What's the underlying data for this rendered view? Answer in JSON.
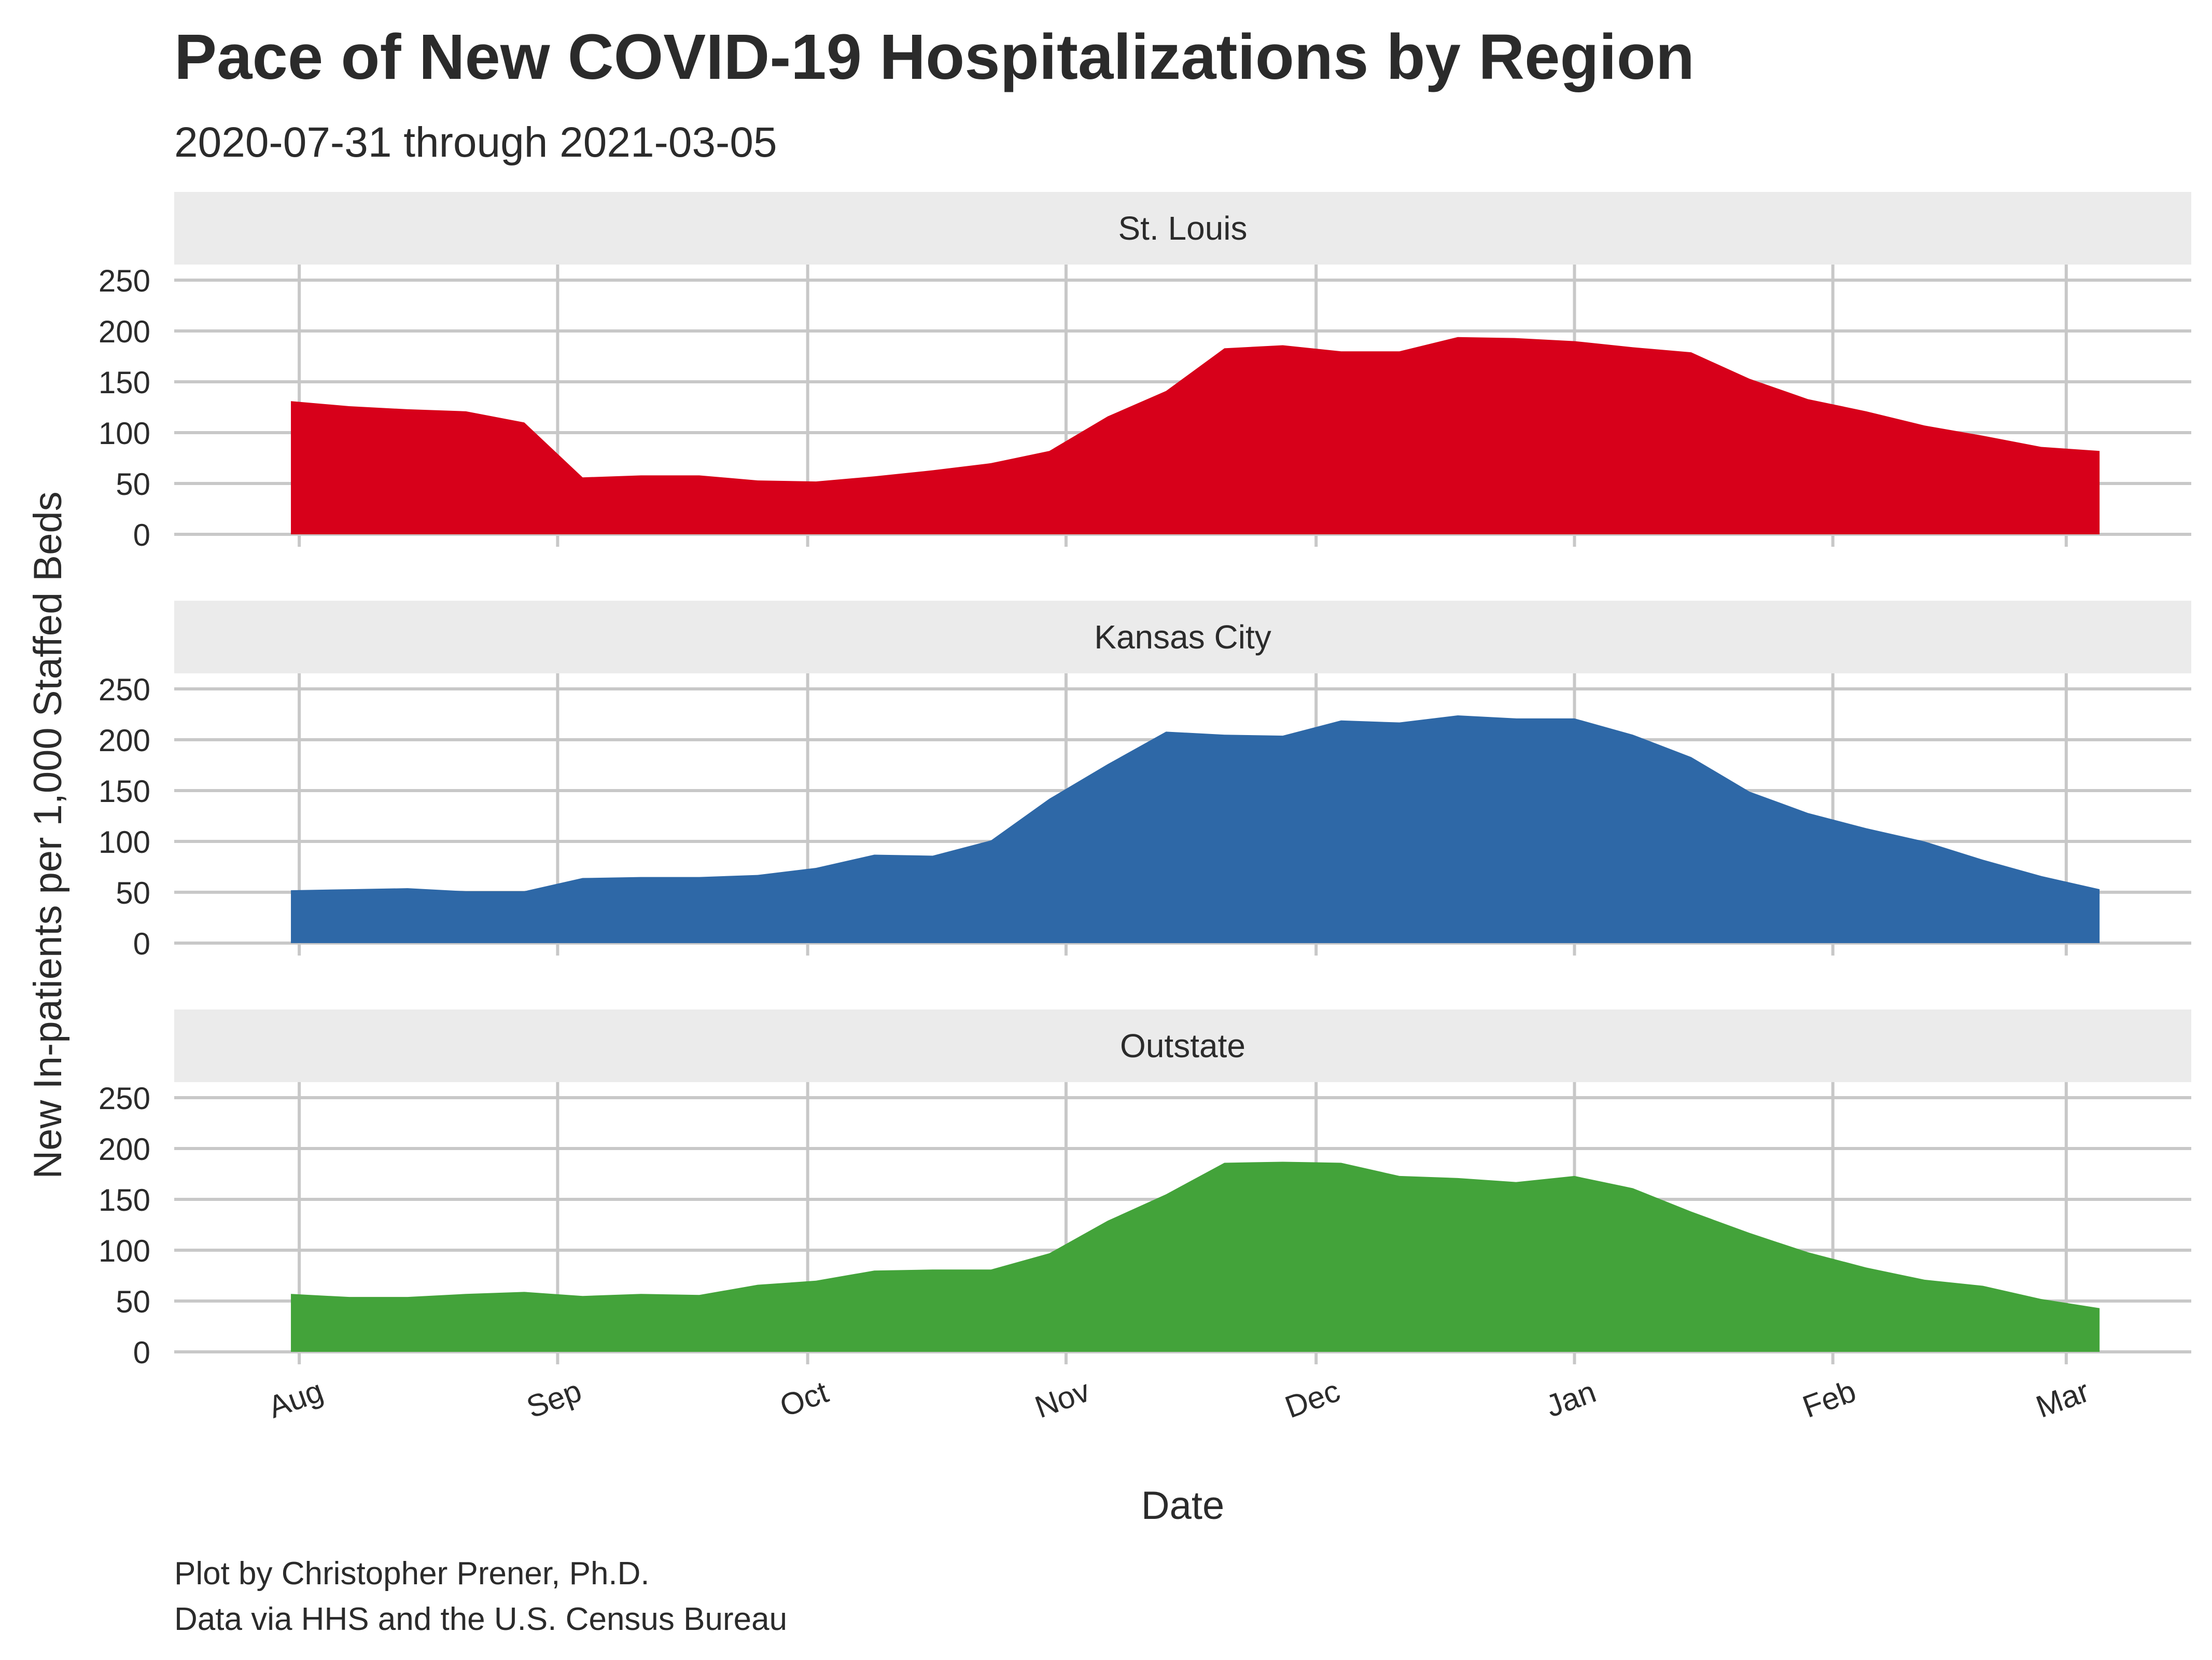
{
  "title": "Pace of New COVID-19 Hospitalizations by Region",
  "subtitle": "2020-07-31 through 2021-03-05",
  "caption": {
    "line1": "Plot by Christopher Prener, Ph.D.",
    "line2": "Data via HHS and the U.S. Census Bureau"
  },
  "chart_data": {
    "type": "area",
    "xlabel": "Date",
    "ylabel": "New In-patients per 1,000 Staffed Beds",
    "ylim": [
      0,
      250
    ],
    "xlim": [
      "2020-07-17",
      "2021-03-16"
    ],
    "grid": true,
    "y_ticks": [
      0,
      50,
      100,
      150,
      200,
      250
    ],
    "x_ticks": [
      {
        "date": "2020-08-01",
        "label": "Aug"
      },
      {
        "date": "2020-09-01",
        "label": "Sep"
      },
      {
        "date": "2020-10-01",
        "label": "Oct"
      },
      {
        "date": "2020-11-01",
        "label": "Nov"
      },
      {
        "date": "2020-12-01",
        "label": "Dec"
      },
      {
        "date": "2021-01-01",
        "label": "Jan"
      },
      {
        "date": "2021-02-01",
        "label": "Feb"
      },
      {
        "date": "2021-03-01",
        "label": "Mar"
      }
    ],
    "x": [
      "2020-07-31",
      "2020-08-07",
      "2020-08-14",
      "2020-08-21",
      "2020-08-28",
      "2020-09-04",
      "2020-09-11",
      "2020-09-18",
      "2020-09-25",
      "2020-10-02",
      "2020-10-09",
      "2020-10-16",
      "2020-10-23",
      "2020-10-30",
      "2020-11-06",
      "2020-11-13",
      "2020-11-20",
      "2020-11-27",
      "2020-12-04",
      "2020-12-11",
      "2020-12-18",
      "2020-12-25",
      "2021-01-01",
      "2021-01-08",
      "2021-01-15",
      "2021-01-22",
      "2021-01-29",
      "2021-02-05",
      "2021-02-12",
      "2021-02-19",
      "2021-02-26",
      "2021-03-05"
    ],
    "panels": [
      {
        "name": "St. Louis",
        "color": "#d7001a",
        "values": [
          131,
          126,
          123,
          121,
          110,
          56,
          58,
          58,
          53,
          52,
          57,
          63,
          70,
          82,
          116,
          141,
          183,
          186,
          180,
          180,
          194,
          193,
          190,
          184,
          179,
          153,
          133,
          121,
          107,
          97,
          86,
          82
        ]
      },
      {
        "name": "Kansas City",
        "color": "#2e68a7",
        "values": [
          52,
          53,
          54,
          51,
          51,
          64,
          65,
          65,
          67,
          74,
          87,
          86,
          101,
          142,
          176,
          208,
          205,
          204,
          219,
          217,
          224,
          221,
          221,
          205,
          183,
          149,
          128,
          113,
          100,
          82,
          66,
          53
        ]
      },
      {
        "name": "Outstate",
        "color": "#43a33a",
        "values": [
          57,
          54,
          54,
          57,
          59,
          55,
          57,
          56,
          66,
          70,
          80,
          81,
          81,
          97,
          129,
          155,
          186,
          187,
          186,
          173,
          171,
          167,
          173,
          161,
          138,
          117,
          98,
          83,
          71,
          65,
          52,
          43
        ]
      }
    ]
  }
}
